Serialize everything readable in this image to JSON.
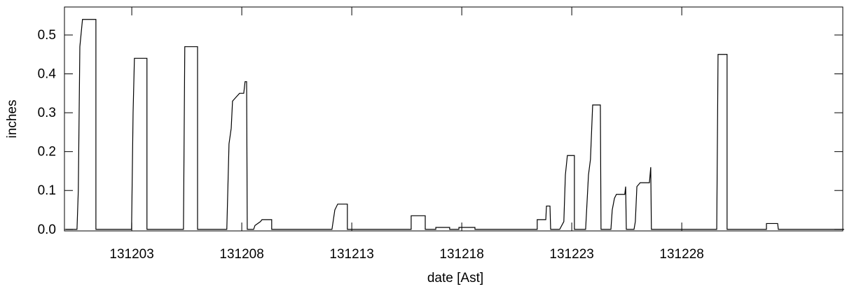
{
  "chart_data": {
    "type": "line",
    "xlabel": "date [Ast]",
    "ylabel": "inches",
    "x": [
      0,
      0.51,
      0.57,
      0.64,
      0.76,
      1.37,
      1.37,
      2.99,
      3.06,
      3.12,
      3.69,
      3.69,
      5.35,
      5.41,
      5.99,
      5.99,
      7.32,
      7.42,
      7.52,
      7.58,
      7.74,
      7.9,
      8.09,
      8.15,
      8.22,
      8.25,
      8.54,
      8.6,
      8.85,
      8.92,
      9.36,
      9.36,
      12.1,
      12.23,
      12.36,
      12.8,
      12.8,
      15.7,
      15.7,
      16.34,
      16.34,
      16.82,
      16.82,
      17.45,
      17.45,
      17.87,
      17.87,
      18.6,
      18.6,
      21.43,
      21.43,
      21.82,
      21.85,
      22.01,
      22.04,
      22.45,
      22.64,
      22.71,
      22.8,
      23.12,
      23.12,
      23.63,
      23.76,
      23.85,
      23.95,
      24.3,
      24.33,
      24.78,
      24.84,
      24.94,
      25.03,
      25.41,
      25.45,
      25.48,
      25.83,
      25.89,
      25.96,
      26.11,
      26.53,
      26.59,
      26.62,
      29.59,
      29.65,
      30.06,
      30.06,
      31.85,
      31.85,
      32.36,
      32.39,
      35.38
    ],
    "values": [
      0,
      0,
      0.1,
      0.47,
      0.54,
      0.54,
      0,
      0,
      0.3,
      0.44,
      0.44,
      0,
      0,
      0.47,
      0.47,
      0,
      0,
      0.22,
      0.26,
      0.33,
      0.34,
      0.35,
      0.35,
      0.38,
      0.38,
      0,
      0,
      0.01,
      0.02,
      0.025,
      0.025,
      0,
      0,
      0.05,
      0.065,
      0.065,
      0,
      0,
      0.035,
      0.035,
      0,
      0,
      0.005,
      0.005,
      0,
      0,
      0.005,
      0.005,
      0,
      0,
      0.025,
      0.025,
      0.06,
      0.06,
      0,
      0,
      0.02,
      0.14,
      0.19,
      0.19,
      0,
      0,
      0.14,
      0.18,
      0.32,
      0.32,
      0,
      0,
      0.05,
      0.08,
      0.09,
      0.09,
      0.11,
      0,
      0,
      0.02,
      0.11,
      0.12,
      0.12,
      0.16,
      0,
      0,
      0.45,
      0.45,
      0,
      0,
      0.015,
      0.015,
      0,
      0
    ],
    "color": "#000000",
    "xlim": [
      -0.06,
      35.32
    ],
    "xticks": [
      {
        "value": 3,
        "label": "131203"
      },
      {
        "value": 8,
        "label": "131208"
      },
      {
        "value": 13,
        "label": "131213"
      },
      {
        "value": 18,
        "label": "131218"
      },
      {
        "value": 23,
        "label": "131223"
      },
      {
        "value": 28,
        "label": "131228"
      }
    ],
    "ylim": [
      -0.004,
      0.572
    ],
    "yticks": [
      {
        "value": 0,
        "label": "0.0"
      },
      0.1,
      0.2,
      0.3,
      0.4,
      0.5
    ]
  }
}
